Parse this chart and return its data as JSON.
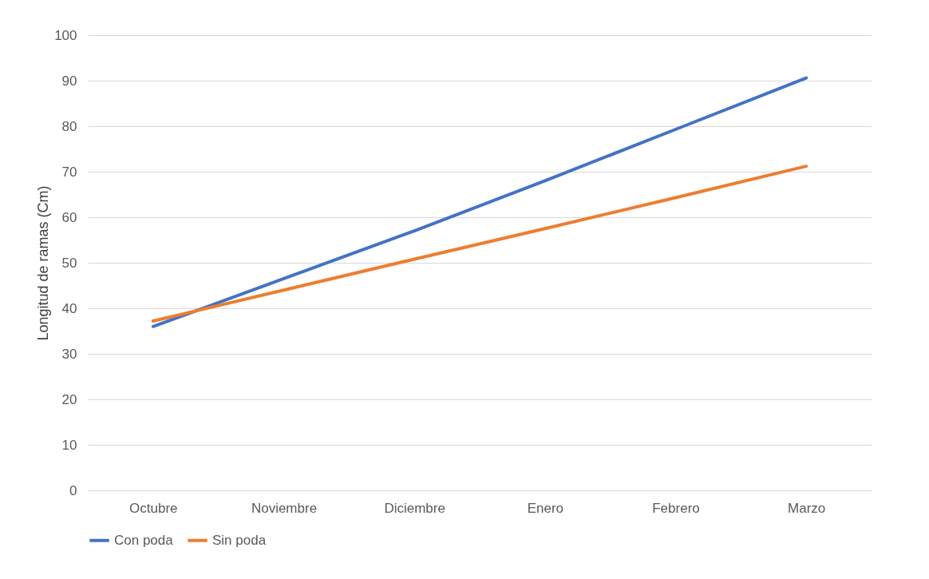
{
  "chart_data": {
    "type": "line",
    "ylabel": "Longitud de ramas (Cm)",
    "categories": [
      "Octubre",
      "Noviembre",
      "Diciembre",
      "Enero",
      "Febrero",
      "Marzo"
    ],
    "series": [
      {
        "name": "Con poda",
        "color": "#4472c4",
        "values": [
          36,
          46.5,
          57,
          68,
          79.3,
          90.6
        ]
      },
      {
        "name": "Sin poda",
        "color": "#ed7d31",
        "values": [
          37.2,
          44,
          50.8,
          57.5,
          64.3,
          71.2
        ]
      }
    ],
    "ylim": [
      0,
      100
    ],
    "yticks": [
      0,
      10,
      20,
      30,
      40,
      50,
      60,
      70,
      80,
      90,
      100
    ],
    "grid": "y",
    "legend": "bottom",
    "marker": "none",
    "line_style": "solid"
  }
}
